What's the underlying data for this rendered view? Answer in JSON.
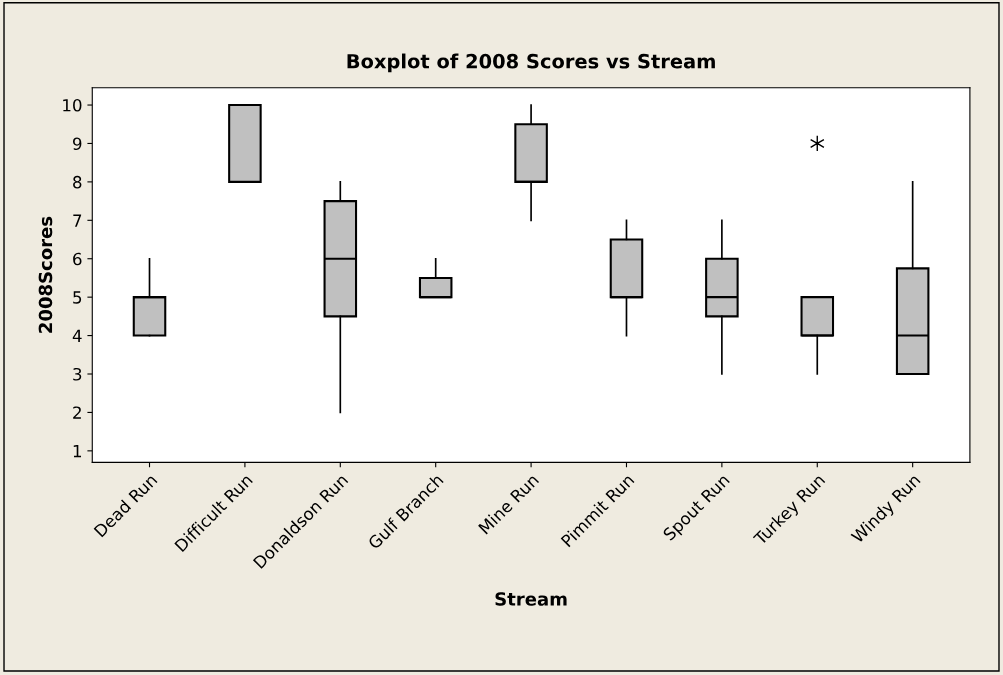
{
  "chart_data": {
    "type": "box",
    "title": "Boxplot of 2008 Scores vs Stream",
    "xlabel": "Stream",
    "ylabel": "2008Scores",
    "categories": [
      "Dead Run",
      "Difficult Run",
      "Donaldson Run",
      "Gulf Branch",
      "Mine Run",
      "Pimmit Run",
      "Spout Run",
      "Turkey Run",
      "Windy Run"
    ],
    "series": [
      {
        "color": "#c0c0c0",
        "boxes": [
          {
            "low": 4,
            "q1": 4,
            "median": 5,
            "q3": 5,
            "high": 6
          },
          {
            "low": 8,
            "q1": 8,
            "median": 10,
            "q3": 10,
            "high": 10
          },
          {
            "low": 2,
            "q1": 4.5,
            "median": 6,
            "q3": 7.5,
            "high": 8
          },
          {
            "low": 5,
            "q1": 5,
            "median": 5,
            "q3": 5.5,
            "high": 6
          },
          {
            "low": 7,
            "q1": 8,
            "median": 8,
            "q3": 9.5,
            "high": 10
          },
          {
            "low": 4,
            "q1": 5,
            "median": 5,
            "q3": 6.5,
            "high": 7
          },
          {
            "low": 3,
            "q1": 4.5,
            "median": 5,
            "q3": 6,
            "high": 7
          },
          {
            "low": 3,
            "q1": 4,
            "median": 4,
            "q3": 5,
            "high": 5,
            "outliers": [
              9
            ]
          },
          {
            "low": 3,
            "q1": 3,
            "median": 4,
            "q3": 5.75,
            "high": 8
          }
        ]
      }
    ],
    "ylim": [
      0.7,
      10.45
    ],
    "yticks": [
      1,
      2,
      3,
      4,
      5,
      6,
      7,
      8,
      9,
      10
    ],
    "grid": false,
    "marker": "star"
  }
}
